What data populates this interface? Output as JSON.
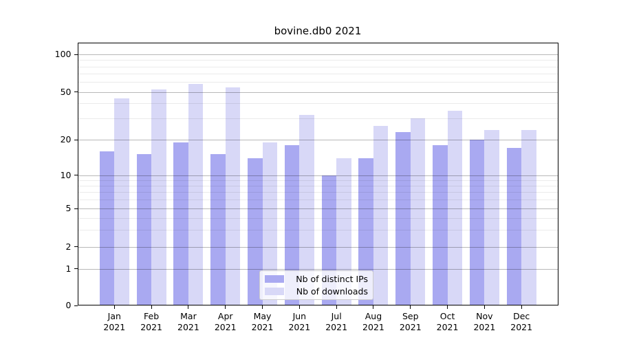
{
  "window": {
    "title": "bovine.db0 2021"
  },
  "chart_data": {
    "type": "bar",
    "title": "bovine.db0 2021",
    "categories": [
      "Jan",
      "Feb",
      "Mar",
      "Apr",
      "May",
      "Jun",
      "Jul",
      "Aug",
      "Sep",
      "Oct",
      "Nov",
      "Dec"
    ],
    "category_year": "2021",
    "series": [
      {
        "name": "Nb of distinct IPs",
        "color": "#a9a9f1",
        "values": [
          16,
          15,
          19,
          15,
          14,
          18,
          10,
          14,
          23,
          18,
          20,
          17
        ]
      },
      {
        "name": "Nb of downloads",
        "color": "#d8d8f7",
        "values": [
          44,
          52,
          58,
          54,
          19,
          32,
          14,
          26,
          30,
          35,
          24,
          24
        ]
      }
    ],
    "xlabel": "",
    "ylabel": "",
    "yscale": "log-like",
    "ytick_values": [
      0,
      1,
      2,
      5,
      10,
      20,
      50,
      100
    ],
    "ytick_labels": [
      "0",
      "1",
      "2",
      "5",
      "10",
      "20",
      "50",
      "100"
    ],
    "minor_gridline_values": [
      3,
      4,
      6,
      7,
      8,
      9,
      30,
      40,
      60,
      70,
      80,
      90
    ],
    "ylim": [
      0,
      135
    ],
    "grid": "horizontal, major and minor, drawn over bars",
    "legend_position": "lower center"
  },
  "legend": {
    "items": [
      {
        "label": "Nb of distinct IPs",
        "color": "#a9a9f1"
      },
      {
        "label": "Nb of downloads",
        "color": "#d8d8f7"
      }
    ]
  }
}
